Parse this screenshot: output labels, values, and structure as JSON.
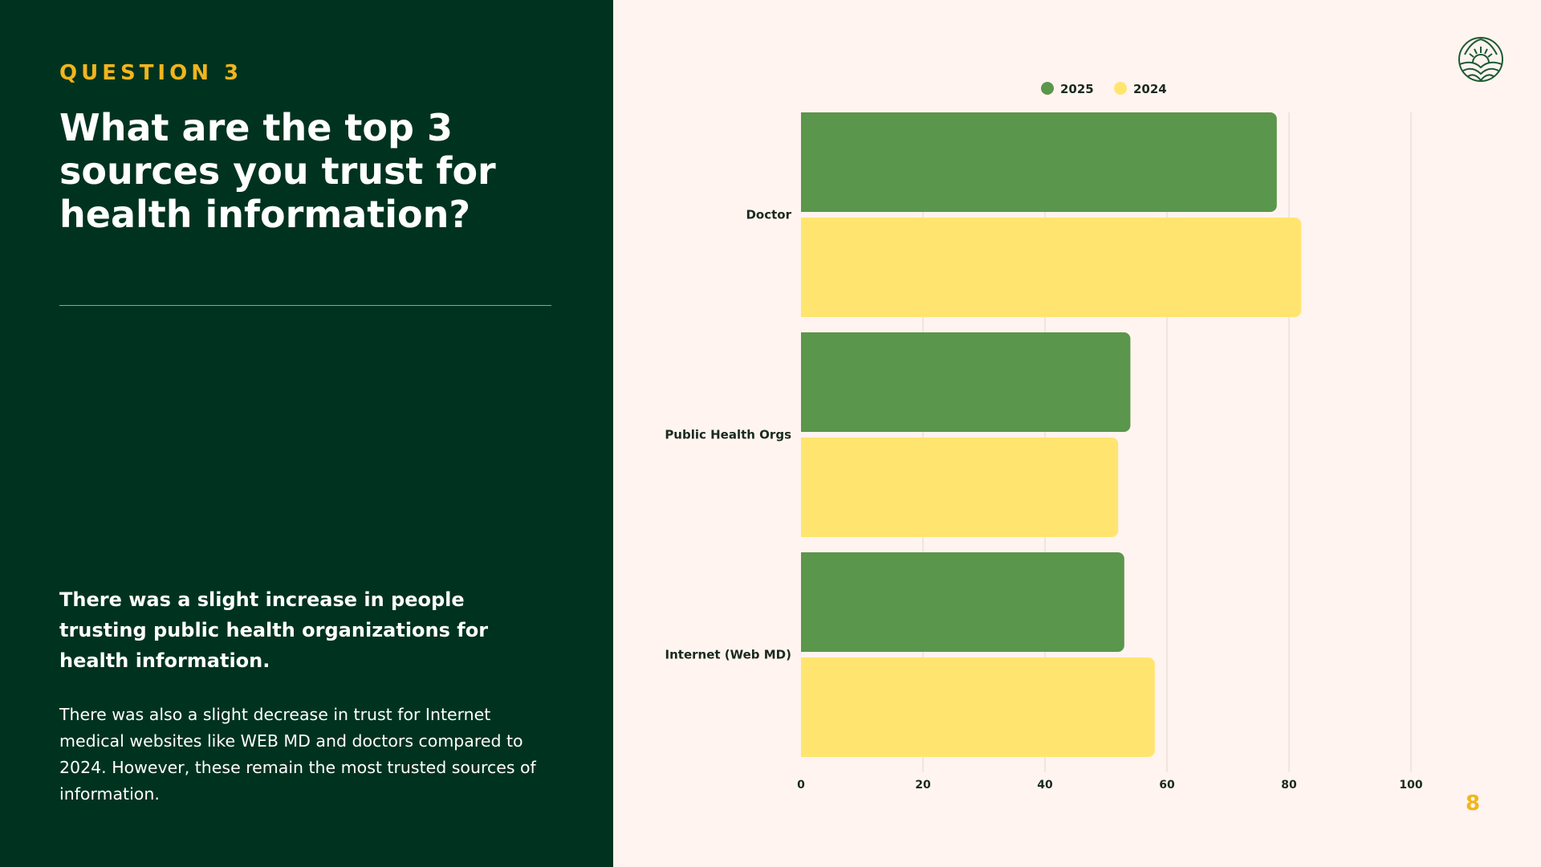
{
  "left": {
    "kicker": "QUESTION 3",
    "headline": "What are the top 3 sources you trust for health information?",
    "bold_paragraph": "There was a slight increase in people trusting public health organizations for health information.",
    "body_paragraph": "There was also a slight decrease in trust for Internet medical websites like WEB MD and doctors compared to 2024. However, these remain the most trusted sources of information."
  },
  "page_number": "8",
  "colors": {
    "left_bg": "#00331f",
    "accent": "#f1b51c",
    "series_2025": "#5a964b",
    "series_2024": "#ffe56f",
    "right_bg": "#fff4ef"
  },
  "chart_data": {
    "type": "bar",
    "orientation": "horizontal",
    "categories": [
      "Doctor",
      "Public Health Orgs",
      "Internet (Web MD)"
    ],
    "series": [
      {
        "name": "2025",
        "values": [
          78,
          54,
          53
        ],
        "color": "#5a964b"
      },
      {
        "name": "2024",
        "values": [
          82,
          52,
          58
        ],
        "color": "#ffe56f"
      }
    ],
    "xlim": [
      0,
      100
    ],
    "xticks": [
      "0",
      "20",
      "40",
      "60",
      "80",
      "100"
    ],
    "legend": "top-center",
    "grid": true
  }
}
